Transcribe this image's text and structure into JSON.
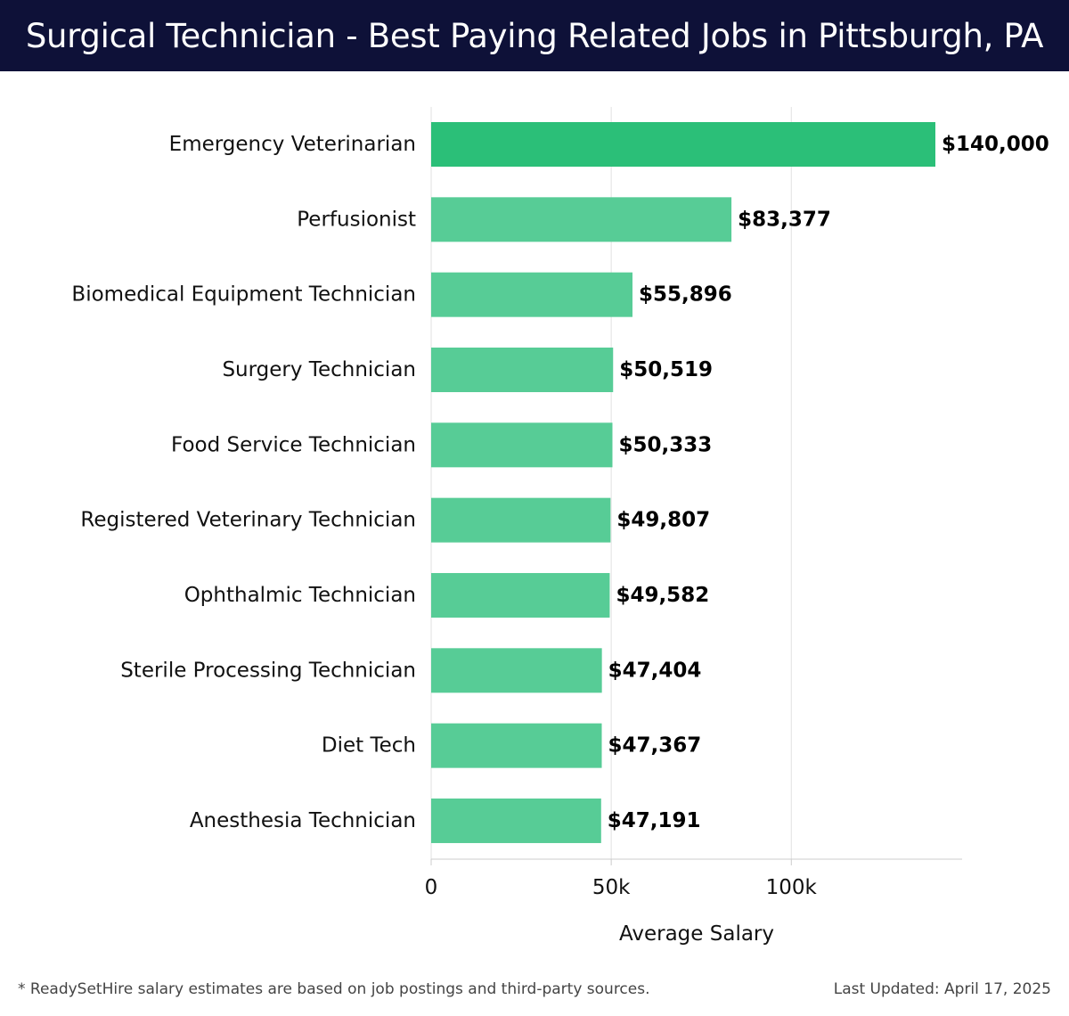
{
  "header": {
    "title": "Surgical Technician - Best Paying Related Jobs in Pittsburgh, PA"
  },
  "chart_data": {
    "type": "bar",
    "orientation": "horizontal",
    "title": "Surgical Technician - Best Paying Related Jobs in Pittsburgh, PA",
    "xlabel": "Average Salary",
    "ylabel": "",
    "xlim": [
      0,
      147500
    ],
    "xticks": [
      {
        "value": 0,
        "label": "0"
      },
      {
        "value": 50000,
        "label": "50k"
      },
      {
        "value": 100000,
        "label": "100k"
      }
    ],
    "grid": "vertical",
    "categories": [
      "Emergency Veterinarian",
      "Perfusionist",
      "Biomedical Equipment Technician",
      "Surgery Technician",
      "Food Service Technician",
      "Registered Veterinary Technician",
      "Ophthalmic Technician",
      "Sterile Processing Technician",
      "Diet Tech",
      "Anesthesia Technician"
    ],
    "values": [
      140000,
      83377,
      55896,
      50519,
      50333,
      49807,
      49582,
      47404,
      47367,
      47191
    ],
    "value_labels": [
      "$140,000",
      "$83,377",
      "$55,896",
      "$50,519",
      "$50,333",
      "$49,807",
      "$49,582",
      "$47,404",
      "$47,367",
      "$47,191"
    ],
    "colors": {
      "top_bar": "#2bbf78",
      "bar": "#57cc96",
      "grid": "#e2e2e2",
      "axis": "#cccccc"
    }
  },
  "footer": {
    "note": "* ReadySetHire salary estimates are based on job postings and third-party sources.",
    "updated": "Last Updated: April 17, 2025"
  }
}
